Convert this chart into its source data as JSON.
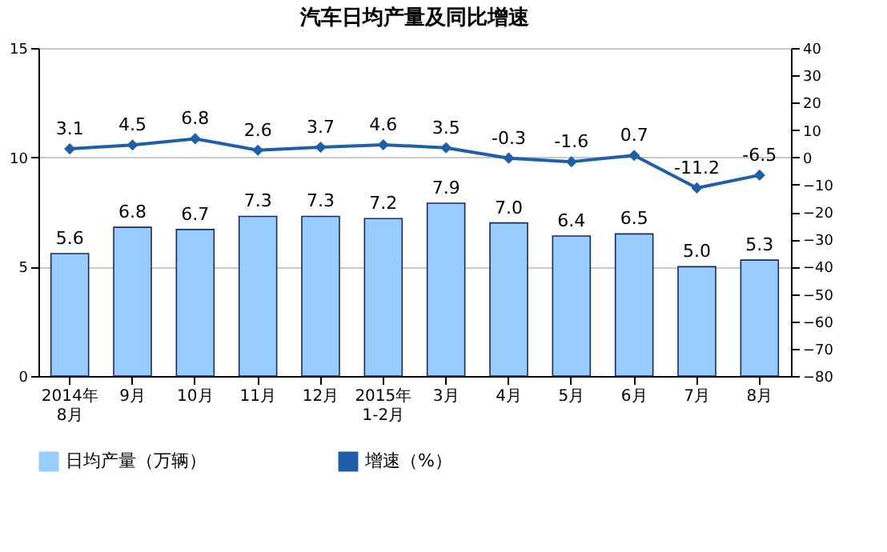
{
  "chart_data": {
    "type": "bar",
    "title": "汽车日均产量及同比增速",
    "categories": [
      "2014年\n8月",
      "9月",
      "10月",
      "11月",
      "12月",
      "2015年\n1-2月",
      "3月",
      "4月",
      "5月",
      "6月",
      "7月",
      "8月"
    ],
    "series": [
      {
        "name": "日均产量（万辆）",
        "color": "#99ccff",
        "values": [
          5.6,
          6.8,
          6.7,
          7.3,
          7.3,
          7.2,
          7.9,
          7.0,
          6.4,
          6.5,
          5.0,
          5.3
        ],
        "value_labels": [
          "5.6",
          "6.8",
          "6.7",
          "7.3",
          "7.3",
          "7.2",
          "7.9",
          "7.0",
          "6.4",
          "6.5",
          "5.0",
          "5.3"
        ]
      },
      {
        "name": "增速（%）",
        "type": "line",
        "axis": "y2",
        "color": "#1f5fa8",
        "marker": "diamond",
        "line_style": "solid",
        "values": [
          3.1,
          4.5,
          6.8,
          2.6,
          3.7,
          4.6,
          3.5,
          -0.3,
          -1.6,
          0.7,
          -11.2,
          -6.5
        ],
        "value_labels": [
          "3.1",
          "4.5",
          "6.8",
          "2.6",
          "3.7",
          "4.6",
          "3.5",
          "-0.3",
          "-1.6",
          "0.7",
          "-11.2",
          "-6.5"
        ]
      }
    ],
    "ylim": [
      0,
      15
    ],
    "yticks": [
      0,
      5,
      10,
      15
    ],
    "y2lim": [
      -80,
      40
    ],
    "y2ticks": [
      -80,
      -70,
      -60,
      -50,
      -40,
      -30,
      -20,
      -10,
      0,
      10,
      20,
      30,
      40
    ],
    "grid": "y",
    "legend": "bottom"
  }
}
